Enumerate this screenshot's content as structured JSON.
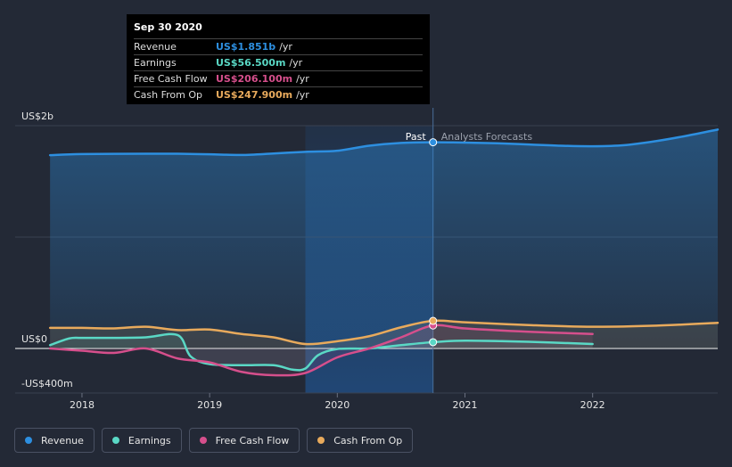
{
  "tooltip": {
    "date": "Sep 30 2020",
    "rows": [
      {
        "label": "Revenue",
        "value": "US$1.851b",
        "unit": "/yr",
        "color": "#2d8fe0"
      },
      {
        "label": "Earnings",
        "value": "US$56.500m",
        "unit": "/yr",
        "color": "#5ad8c5"
      },
      {
        "label": "Free Cash Flow",
        "value": "US$206.100m",
        "unit": "/yr",
        "color": "#d64f8c"
      },
      {
        "label": "Cash From Op",
        "value": "US$247.900m",
        "unit": "/yr",
        "color": "#e8aa5c"
      }
    ]
  },
  "labels": {
    "past": "Past",
    "forecast": "Analysts Forecasts"
  },
  "legend": [
    {
      "label": "Revenue",
      "color": "#2d8fe0"
    },
    {
      "label": "Earnings",
      "color": "#5ad8c5"
    },
    {
      "label": "Free Cash Flow",
      "color": "#d64f8c"
    },
    {
      "label": "Cash From Op",
      "color": "#e8aa5c"
    }
  ],
  "chart_data": {
    "type": "area",
    "ylim": [
      -400,
      2000
    ],
    "xlim": [
      2017.7,
      2022.98
    ],
    "y_ticks": [
      {
        "value": 2000,
        "label": "US$2b"
      },
      {
        "value": 0,
        "label": "US$0"
      },
      {
        "value": -400,
        "label": "-US$400m"
      }
    ],
    "x_ticks": [
      {
        "value": 2018,
        "label": "2018"
      },
      {
        "value": 2019,
        "label": "2019"
      },
      {
        "value": 2020,
        "label": "2020"
      },
      {
        "value": 2021,
        "label": "2021"
      },
      {
        "value": 2022,
        "label": "2022"
      }
    ],
    "past_end": 2020.75,
    "highlight_start": 2019.75,
    "grid": true,
    "series": [
      {
        "name": "Revenue",
        "color": "#2d8fe0",
        "fill": true,
        "x": [
          2017.75,
          2018.0,
          2018.5,
          2018.75,
          2019.0,
          2019.25,
          2019.5,
          2019.75,
          2020.0,
          2020.25,
          2020.5,
          2020.75,
          2021.0,
          2021.25,
          2021.5,
          2021.75,
          2022.0,
          2022.25,
          2022.5,
          2022.75,
          2022.98
        ],
        "y": [
          1735,
          1745,
          1748,
          1748,
          1743,
          1737,
          1750,
          1765,
          1775,
          1820,
          1845,
          1851,
          1848,
          1842,
          1831,
          1820,
          1815,
          1825,
          1862,
          1912,
          1965
        ]
      },
      {
        "name": "Earnings",
        "color": "#5ad8c5",
        "fill": false,
        "x": [
          2017.75,
          2017.9,
          2018.0,
          2018.25,
          2018.5,
          2018.75,
          2018.85,
          2019.0,
          2019.25,
          2019.5,
          2019.65,
          2019.75,
          2019.85,
          2020.0,
          2020.25,
          2020.5,
          2020.75,
          2021.0,
          2021.5,
          2022.0
        ],
        "y": [
          30,
          90,
          95,
          95,
          100,
          120,
          -70,
          -140,
          -150,
          -150,
          -190,
          -180,
          -60,
          -5,
          0,
          30,
          56.5,
          70,
          60,
          40
        ]
      },
      {
        "name": "Free Cash Flow",
        "color": "#d64f8c",
        "fill": false,
        "x": [
          2017.75,
          2018.0,
          2018.25,
          2018.5,
          2018.75,
          2019.0,
          2019.25,
          2019.5,
          2019.75,
          2020.0,
          2020.25,
          2020.5,
          2020.75,
          2021.0,
          2021.5,
          2022.0
        ],
        "y": [
          0,
          -20,
          -40,
          0,
          -90,
          -125,
          -210,
          -240,
          -220,
          -80,
          0,
          100,
          206.1,
          180,
          150,
          130
        ]
      },
      {
        "name": "Cash From Op",
        "color": "#e8aa5c",
        "fill": false,
        "x": [
          2017.75,
          2018.0,
          2018.25,
          2018.5,
          2018.75,
          2019.0,
          2019.25,
          2019.5,
          2019.75,
          2020.0,
          2020.25,
          2020.5,
          2020.75,
          2021.0,
          2021.5,
          2022.0,
          2022.5,
          2022.98
        ],
        "y": [
          185,
          185,
          180,
          195,
          165,
          170,
          130,
          100,
          40,
          65,
          110,
          190,
          247.9,
          235,
          210,
          195,
          205,
          230
        ]
      }
    ]
  }
}
